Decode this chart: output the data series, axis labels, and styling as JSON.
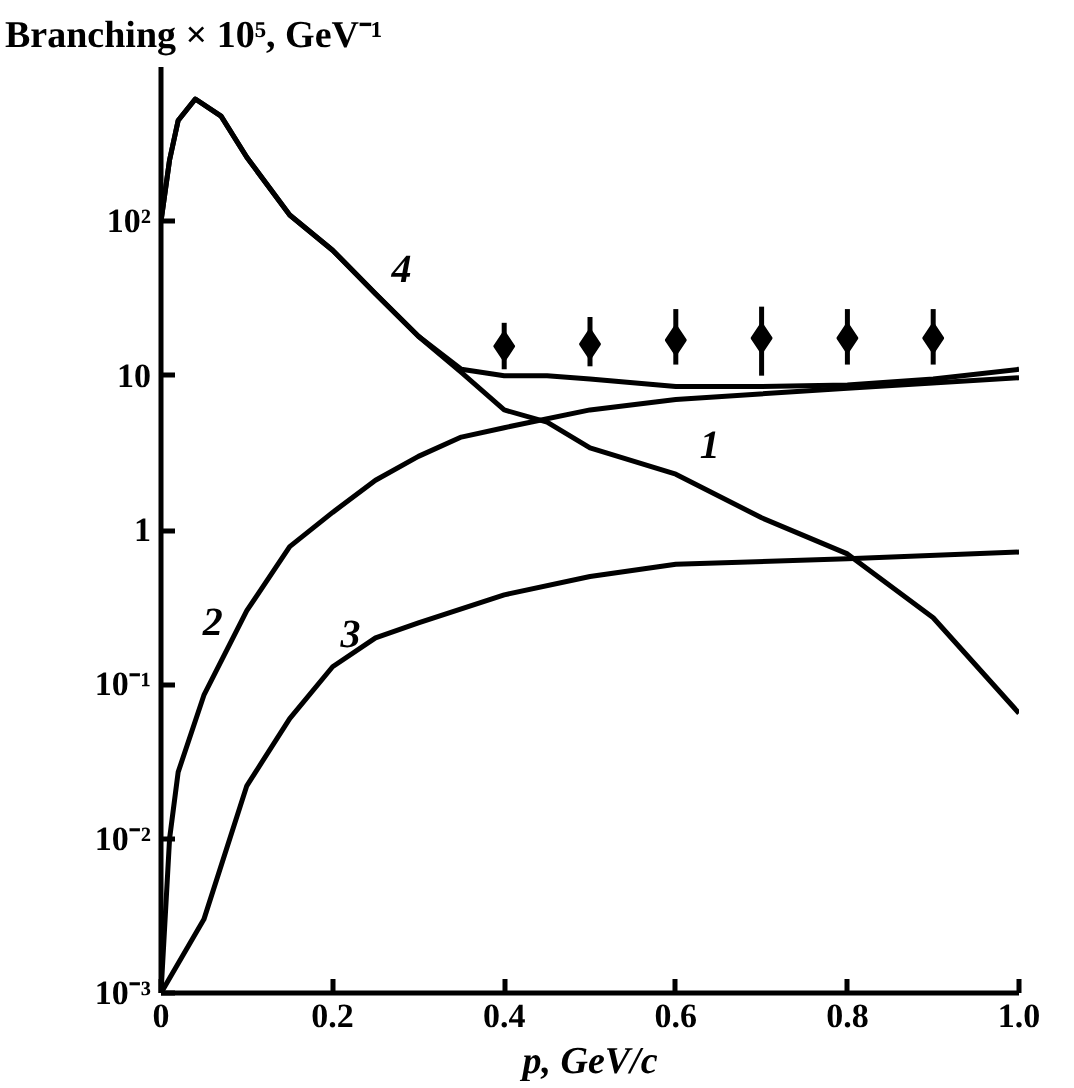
{
  "chart_data": {
    "type": "line",
    "ylabel": "Branching × 10⁵, GeV⁻¹",
    "xlabel": "p, GeV/c",
    "log": "y",
    "grid": false,
    "line_style": "solid",
    "xlim": [
      0,
      1.0
    ],
    "xticks": [
      0,
      0.2,
      0.4,
      0.6,
      0.8,
      {
        "value": 1.0,
        "label": "1.0"
      }
    ],
    "ylim": [
      0.001,
      1000
    ],
    "yticks": [
      {
        "value": 0.001,
        "label": "10⁻³"
      },
      {
        "value": 0.01,
        "label": "10⁻²"
      },
      {
        "value": 0.1,
        "label": "10⁻¹"
      },
      1,
      10,
      {
        "value": 100,
        "label": "10²"
      }
    ],
    "series": [
      {
        "name": "1",
        "color": "#000000",
        "x": [
          0.0,
          0.01,
          0.02,
          0.04,
          0.07,
          0.1,
          0.15,
          0.2,
          0.25,
          0.3,
          0.35,
          0.4,
          0.45,
          0.5,
          0.6,
          0.7,
          0.8,
          0.9,
          1.0
        ],
        "values": [
          100,
          250,
          450,
          620,
          480,
          260,
          110,
          65,
          34,
          18,
          10.5,
          6,
          5,
          3.4,
          2.3,
          1.2,
          0.7,
          0.27,
          0.065
        ]
      },
      {
        "name": "2",
        "color": "#000000",
        "x": [
          0.0,
          0.01,
          0.02,
          0.05,
          0.1,
          0.15,
          0.2,
          0.25,
          0.3,
          0.35,
          0.4,
          0.5,
          0.6,
          0.8,
          1.0
        ],
        "values": [
          0.001,
          0.01,
          0.027,
          0.085,
          0.3,
          0.78,
          1.3,
          2.1,
          3,
          4,
          4.6,
          6,
          7,
          8.3,
          9.7
        ]
      },
      {
        "name": "3",
        "color": "#000000",
        "x": [
          0.0,
          0.05,
          0.1,
          0.15,
          0.2,
          0.25,
          0.3,
          0.4,
          0.5,
          0.6,
          0.8,
          1.0
        ],
        "values": [
          0.001,
          0.003,
          0.022,
          0.06,
          0.13,
          0.2,
          0.25,
          0.38,
          0.5,
          0.6,
          0.65,
          0.72
        ]
      },
      {
        "name": "4",
        "color": "#000000",
        "x": [
          0.0,
          0.01,
          0.02,
          0.04,
          0.07,
          0.1,
          0.15,
          0.2,
          0.25,
          0.3,
          0.35,
          0.4,
          0.45,
          0.5,
          0.6,
          0.7,
          0.8,
          0.9,
          1.0
        ],
        "values": [
          100,
          250,
          450,
          620,
          480,
          260,
          110,
          65,
          34,
          18,
          11,
          10,
          10,
          9.5,
          8.5,
          8.5,
          8.7,
          9.5,
          11
        ]
      },
      {
        "type": "scatter",
        "marker": "diamond",
        "color": "#000000",
        "x": [
          0.4,
          0.5,
          0.6,
          0.7,
          0.8,
          0.9
        ],
        "values": [
          15.5,
          16,
          17,
          17.5,
          17.5,
          17.5
        ],
        "errors": [
          [
            11,
            22
          ],
          [
            11.5,
            24
          ],
          [
            11.8,
            27
          ],
          [
            10,
            28
          ],
          [
            11.8,
            27
          ],
          [
            11.8,
            27
          ]
        ]
      }
    ]
  }
}
